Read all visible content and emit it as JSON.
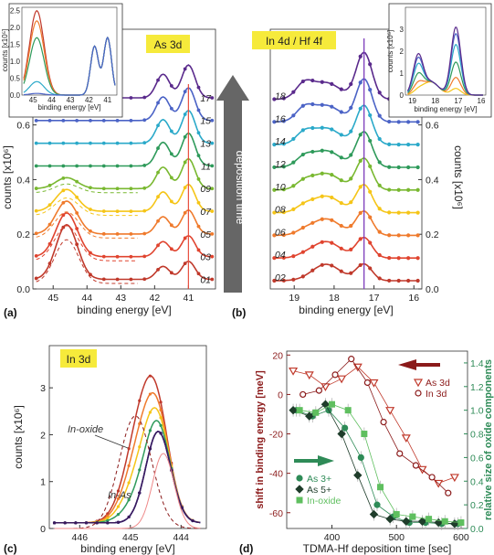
{
  "chart_data": [
    {
      "id": "a",
      "type": "line",
      "panel": "(a)",
      "title": "As 3d",
      "xlabel": "binding energy [eV]",
      "ylabel": "counts [x10⁶]",
      "xlim": [
        45.6,
        40.2
      ],
      "ylim": [
        0,
        0.95
      ],
      "xticks": [
        "45",
        "44",
        "43",
        "42",
        "41"
      ],
      "yticks": [
        "0.0",
        "0.2",
        "0.4",
        "0.6"
      ],
      "marker_line_x": 41.0,
      "peak_labels": [
        "01",
        "03",
        "05",
        "07",
        "09",
        "11",
        "13",
        "15",
        "17"
      ],
      "inset": {
        "xlabel": "binding energy [eV]",
        "ylabel": "counts [x10⁵]",
        "xticks": [
          "45",
          "44",
          "43",
          "42",
          "41"
        ],
        "yticks": [
          "0.0",
          "0.5",
          "1.0",
          "1.5",
          "2.0",
          "2.5"
        ]
      }
    },
    {
      "id": "b",
      "type": "line",
      "panel": "(b)",
      "title": "In 4d / Hf 4f",
      "xlabel": "binding energy [eV]",
      "ylabel": "counts [x10⁶]",
      "xlim": [
        19.6,
        15.8
      ],
      "ylim": [
        0,
        0.95
      ],
      "xticks": [
        "19",
        "18",
        "17",
        "16"
      ],
      "yticks": [
        "0.0",
        "0.2",
        "0.4",
        "0.6",
        "0.8"
      ],
      "marker_line_x": 17.25,
      "peak_labels": [
        "02",
        "04",
        "06",
        "08",
        "10",
        "12",
        "14",
        "16",
        "18"
      ],
      "arrow_label": "deposition time",
      "inset": {
        "xlabel": "binding energy [eV]",
        "ylabel": "counts [x10⁵]",
        "xticks": [
          "19",
          "18",
          "17",
          "16"
        ],
        "yticks": [
          "0",
          "1",
          "2",
          "3"
        ]
      }
    },
    {
      "id": "c",
      "type": "line",
      "panel": "(c)",
      "title": "In 3d",
      "xlabel": "binding energy [eV]",
      "ylabel": "counts [x10⁶]",
      "xlim": [
        446.6,
        443.5
      ],
      "ylim": [
        0,
        3.9
      ],
      "xticks": [
        "446",
        "445",
        "444"
      ],
      "yticks": [
        "0",
        "1",
        "2",
        "3"
      ],
      "annotations": [
        "In-oxide",
        "In-As"
      ]
    },
    {
      "id": "d",
      "type": "line",
      "panel": "(d)",
      "xlabel": "TDMA-Hf deposition time [sec]",
      "ylabel": "shift in binding energy [meV]",
      "y2label": "relative size of oxide components",
      "xlim": [
        330,
        610
      ],
      "ylim": [
        -68,
        22
      ],
      "y2lim": [
        0,
        1.5
      ],
      "xticks": [
        "400",
        "500",
        "600"
      ],
      "yticks": [
        "20",
        "0",
        "-20",
        "-40",
        "-60"
      ],
      "y2ticks": [
        "0.0",
        "0.2",
        "0.4",
        "0.6",
        "0.8",
        "1.0",
        "1.2",
        "1.4"
      ],
      "legend_shift": [
        "As 3d",
        "In 3d"
      ],
      "legend_oxide": [
        "As 3+",
        "As 5+",
        "In-oxide"
      ],
      "series": [
        {
          "name": "As 3d",
          "axis": "left",
          "color": "#c0392b",
          "marker": "triangle-down",
          "open": true,
          "x": [
            340,
            365,
            390,
            415,
            440,
            465,
            490,
            515,
            540,
            565,
            590
          ],
          "y": [
            12,
            10,
            4,
            8,
            14,
            6,
            -8,
            -22,
            -38,
            -45,
            -42
          ]
        },
        {
          "name": "In 3d",
          "axis": "left",
          "color": "#8b1a1a",
          "marker": "circle",
          "open": true,
          "x": [
            355,
            380,
            405,
            430,
            455,
            480,
            505,
            530,
            555,
            580
          ],
          "y": [
            0,
            2,
            10,
            18,
            6,
            -14,
            -30,
            -36,
            -42,
            -50
          ]
        },
        {
          "name": "As 3+",
          "axis": "right",
          "color": "#2e8b57",
          "marker": "circle",
          "x": [
            345,
            370,
            395,
            420,
            445,
            470,
            495,
            520,
            545,
            570,
            595
          ],
          "y": [
            1.0,
            0.95,
            1.0,
            0.85,
            0.6,
            0.2,
            0.1,
            0.05,
            0.05,
            0.04,
            0.04
          ]
        },
        {
          "name": "As 5+",
          "axis": "right",
          "color": "#1f3d2b",
          "marker": "diamond",
          "x": [
            340,
            365,
            390,
            415,
            440,
            465,
            490,
            515,
            540,
            565,
            590
          ],
          "y": [
            1.0,
            0.95,
            1.05,
            0.8,
            0.45,
            0.12,
            0.08,
            0.06,
            0.06,
            0.05,
            0.04
          ]
        },
        {
          "name": "In-oxide",
          "axis": "right",
          "color": "#5fbf5f",
          "marker": "square",
          "x": [
            350,
            375,
            400,
            425,
            450,
            475,
            500,
            525,
            550,
            575,
            600
          ],
          "y": [
            1.0,
            0.98,
            1.05,
            1.0,
            0.8,
            0.35,
            0.12,
            0.1,
            0.08,
            0.06,
            0.05
          ]
        }
      ]
    }
  ]
}
